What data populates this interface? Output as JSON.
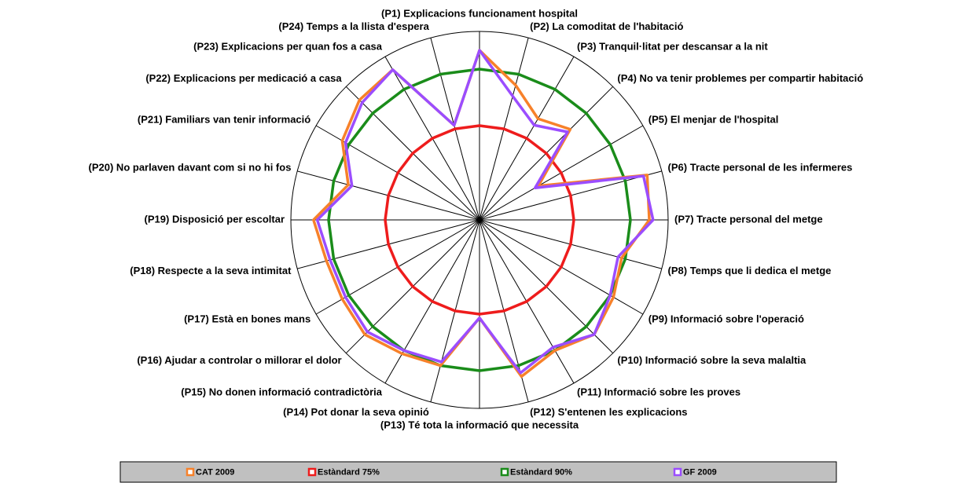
{
  "chart_data": {
    "type": "radar",
    "categories": [
      "(P1) Explicacions funcionament hospital",
      "(P2) La comoditat de l'habitació",
      "(P3) Tranquil·litat per descansar a la nit",
      "(P4) No va tenir problemes per compartir habitació",
      "(P5) El menjar de l'hospital",
      "(P6) Tracte personal de les infermeres",
      "(P7) Tracte personal del metge",
      "(P8) Temps que li dedica el metge",
      "(P9) Informació sobre l'operació",
      "(P10) Informació sobre la seva malaltia",
      "(P11) Informació sobre les proves",
      "(P12) S'entenen les explicacions",
      "(P13) Té tota la informació que necessita",
      "(P14) Pot donar la seva opinió",
      "(P15) No donen informació contradictòria",
      "(P16) Ajudar a controlar o millorar el dolor",
      "(P17) Està en bones mans",
      "(P18) Respecte a la seva intimitat",
      "(P19) Disposició per escoltar",
      "(P20) No parlaven davant com si no hi fos",
      "(P21) Familiars van tenir informació",
      "(P22) Explicacions per medicació a casa",
      "(P23) Explicacions per quan fos a casa",
      "(P24) Temps a la llista d'espera"
    ],
    "series": [
      {
        "name": "CAT 2009",
        "color": "#f7812a",
        "values": [
          95,
          87,
          81,
          84,
          68,
          96,
          95,
          89,
          91,
          93,
          90,
          93,
          76,
          90,
          91,
          93,
          92,
          92,
          94,
          86,
          92,
          95,
          96,
          76
        ]
      },
      {
        "name": "Estàndard 75%",
        "color": "#ee1c1c",
        "values": [
          75,
          75,
          75,
          75,
          75,
          75,
          75,
          75,
          75,
          75,
          75,
          75,
          75,
          75,
          75,
          75,
          75,
          75,
          75,
          75,
          75,
          75,
          75,
          75
        ]
      },
      {
        "name": "Estàndard 90%",
        "color": "#1a8c1a",
        "values": [
          90,
          90,
          90,
          90,
          90,
          90,
          90,
          90,
          90,
          90,
          90,
          90,
          90,
          90,
          90,
          90,
          90,
          90,
          90,
          90,
          90,
          90,
          90,
          90
        ]
      },
      {
        "name": "GF 2009",
        "color": "#9b4dff",
        "values": [
          95,
          84,
          79,
          83,
          67,
          95,
          96,
          88,
          90,
          93,
          89,
          92,
          76,
          89,
          90,
          92,
          91,
          91,
          93,
          85,
          91,
          94,
          96,
          76
        ]
      }
    ],
    "rlim": [
      50,
      100
    ]
  }
}
